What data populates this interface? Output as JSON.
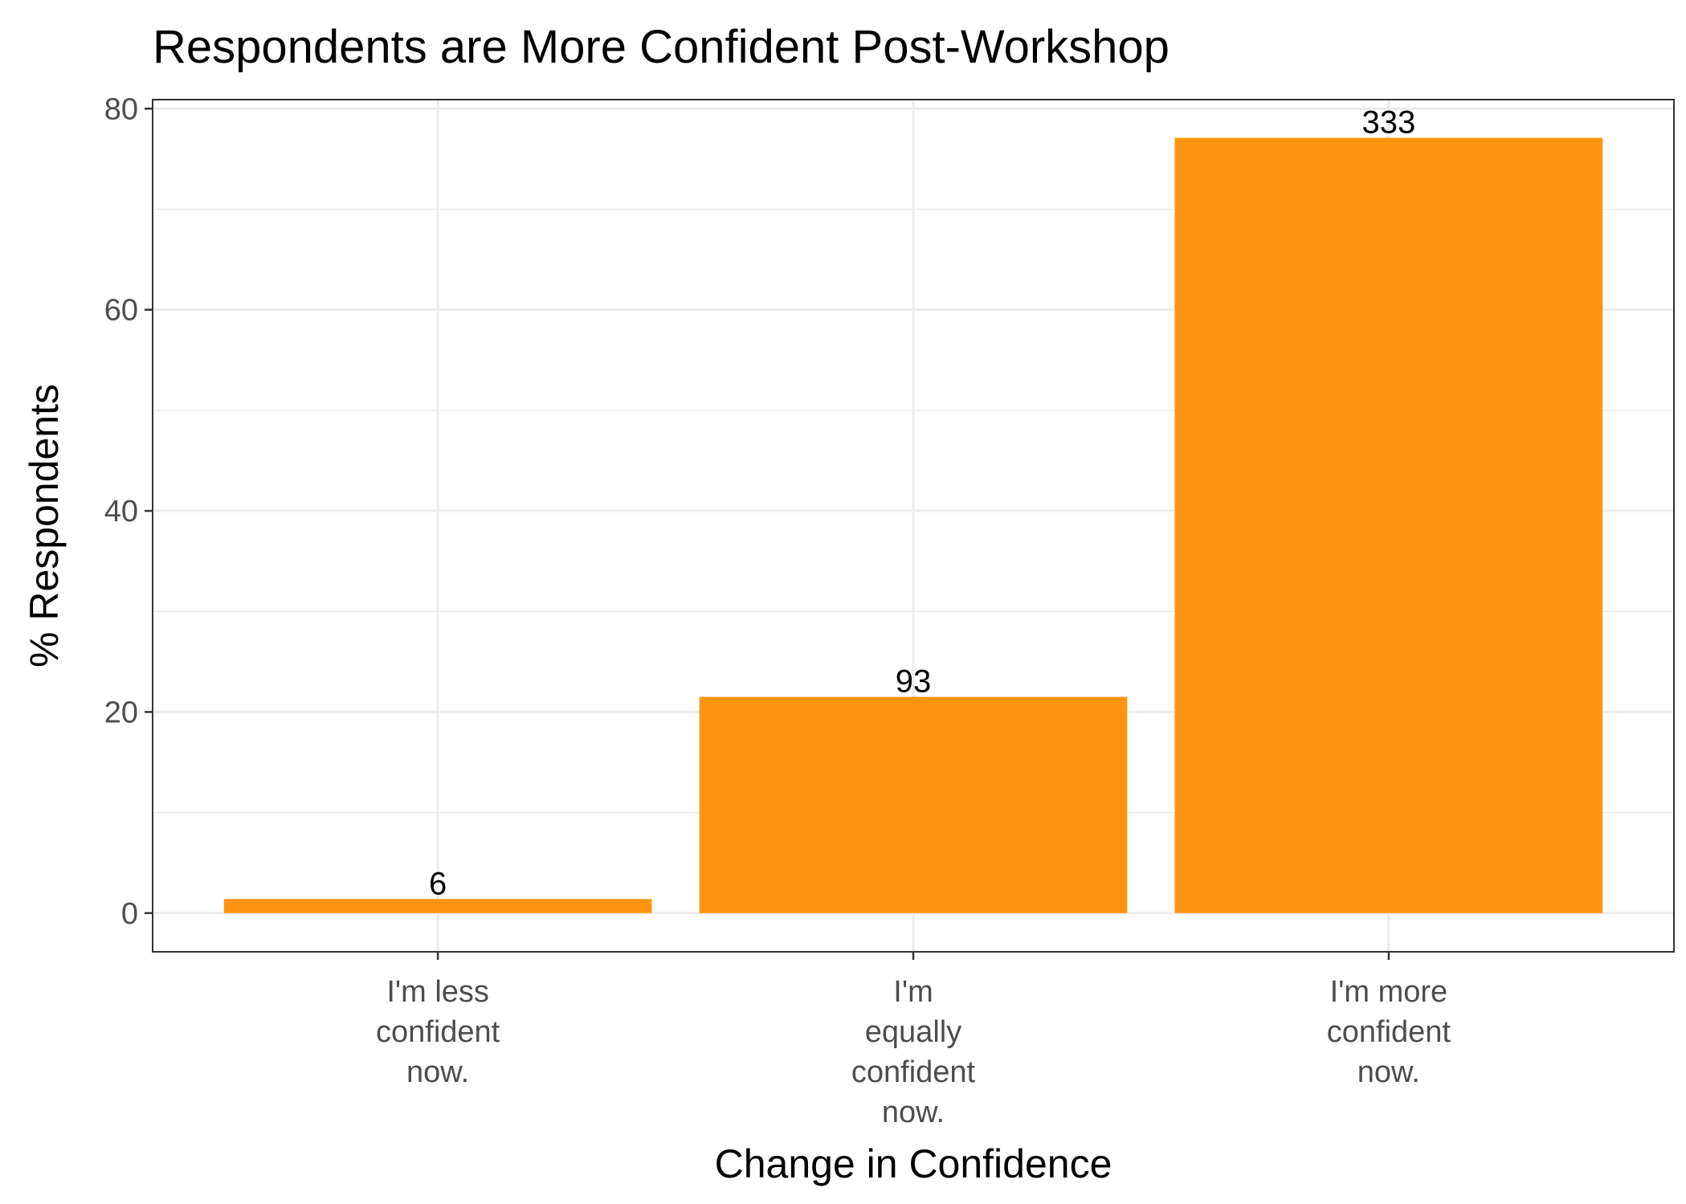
{
  "chart_data": {
    "type": "bar",
    "title": "Respondents are More Confident Post-Workshop",
    "xlabel": "Change in Confidence",
    "ylabel": "% Respondents",
    "categories": [
      [
        "I'm less",
        "confident",
        "now."
      ],
      [
        "I'm",
        "equally",
        "confident",
        "now."
      ],
      [
        "I'm more",
        "confident",
        "now."
      ]
    ],
    "values": [
      1.4,
      21.5,
      77.1
    ],
    "data_labels": [
      "6",
      "93",
      "333"
    ],
    "ylim": [
      -3.85,
      80.9
    ],
    "yticks": [
      0,
      20,
      40,
      60,
      80
    ],
    "yticks_minor": [
      10,
      30,
      50,
      70
    ],
    "grid": true,
    "bar_color": "#fd9510",
    "legend": "none"
  }
}
